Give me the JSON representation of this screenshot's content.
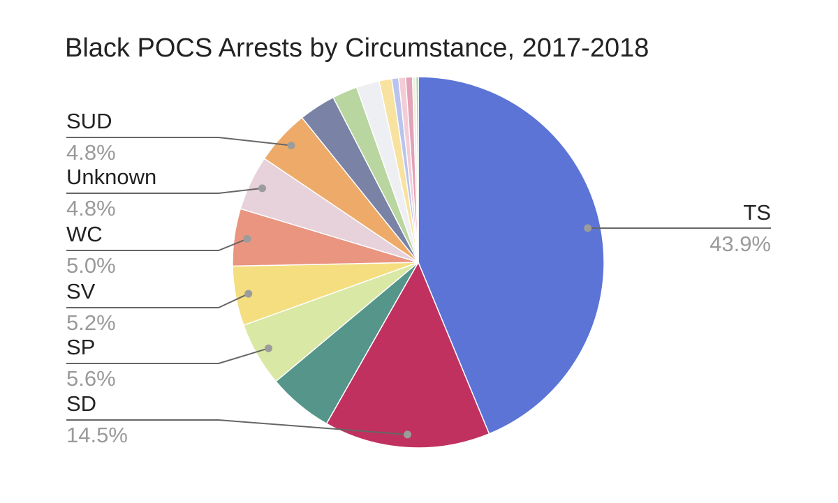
{
  "chart_data": {
    "type": "pie",
    "title": "Black POCS Arrests by Circumstance, 2017-2018",
    "slices": [
      {
        "label": "TS",
        "percent_label": "43.9%",
        "value": 43.9,
        "color": "#5b74d6"
      },
      {
        "label": "SD",
        "percent_label": "14.5%",
        "value": 14.5,
        "color": "#c03160"
      },
      {
        "label": "",
        "value": 5.7,
        "color": "#55958a"
      },
      {
        "label": "SP",
        "percent_label": "5.6%",
        "value": 5.6,
        "color": "#d9e8a4"
      },
      {
        "label": "SV",
        "percent_label": "5.2%",
        "value": 5.2,
        "color": "#f4de80"
      },
      {
        "label": "WC",
        "percent_label": "5.0%",
        "value": 5.0,
        "color": "#e99580"
      },
      {
        "label": "Unknown",
        "percent_label": "4.8%",
        "value": 4.8,
        "color": "#e7d1da"
      },
      {
        "label": "SUD",
        "percent_label": "4.8%",
        "value": 4.8,
        "color": "#eeaa68"
      },
      {
        "label": "",
        "value": 3.2,
        "color": "#7a82a6"
      },
      {
        "label": "",
        "value": 2.2,
        "color": "#b9d5a0"
      },
      {
        "label": "",
        "value": 2.0,
        "color": "#eeeff2"
      },
      {
        "label": "",
        "value": 1.1,
        "color": "#f8e2a0"
      },
      {
        "label": "",
        "value": 0.6,
        "color": "#b9c4ee"
      },
      {
        "label": "",
        "value": 0.6,
        "color": "#f3ccd6"
      },
      {
        "label": "",
        "value": 0.6,
        "color": "#e2a2b8"
      },
      {
        "label": "",
        "value": 0.3,
        "color": "#e9f1dc"
      },
      {
        "label": "",
        "value": 0.2,
        "color": "#9fcf9a"
      }
    ],
    "legend": "callout labels"
  }
}
